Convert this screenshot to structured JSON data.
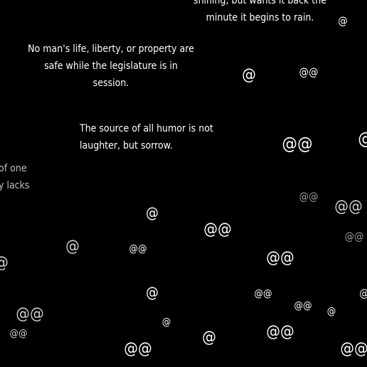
{
  "quotes": [
    {
      "lines": [
        "shining, but wants it back the",
        "minute it begins to rain."
      ]
    },
    {
      "lines": [
        "No man's life, liberty, or property are",
        "safe while the legislature is in",
        "session."
      ]
    },
    {
      "lines": [
        "The source of all humor is not",
        "laughter, but sorrow."
      ]
    },
    {
      "lines": [
        "of one",
        "y lacks"
      ]
    }
  ],
  "glyphs": {
    "single": "@",
    "double": "@@"
  }
}
